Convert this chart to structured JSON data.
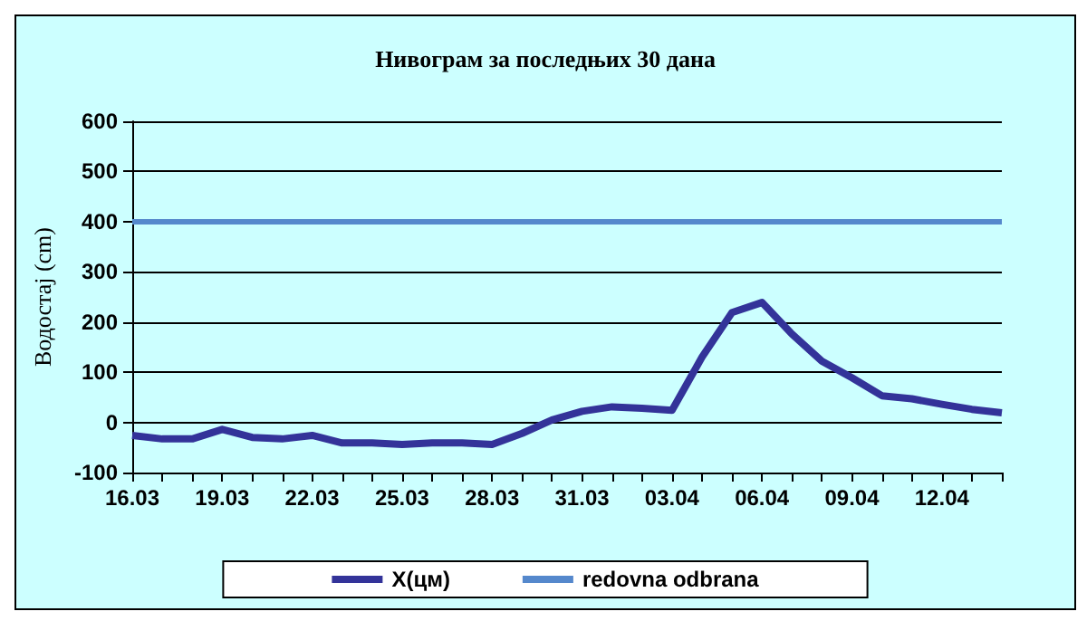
{
  "chart_data": {
    "type": "line",
    "title": "Нивограм за последњих 30 дана",
    "ylabel": "Водостај (cm)",
    "categories": [
      "16.03",
      null,
      null,
      "19.03",
      null,
      null,
      "22.03",
      null,
      null,
      "25.03",
      null,
      null,
      "28.03",
      null,
      null,
      "31.03",
      null,
      null,
      "03.04",
      null,
      null,
      "06.04",
      null,
      null,
      "09.04",
      null,
      null,
      "12.04",
      null,
      null
    ],
    "series": [
      {
        "name": "X(цм)",
        "color": "#333399",
        "values": [
          -26,
          -33,
          -33,
          -14,
          -30,
          -33,
          -26,
          -41,
          -41,
          -44,
          -41,
          -41,
          -44,
          -22,
          5,
          22,
          31,
          28,
          24,
          130,
          219,
          239,
          176,
          122,
          89,
          53,
          47,
          36,
          26,
          19
        ]
      }
    ],
    "ylim": [
      -100,
      600
    ],
    "yticks": [
      -100,
      0,
      100,
      200,
      300,
      400,
      500,
      600
    ],
    "ref_lines": [
      {
        "axis": "y",
        "value": 400,
        "label": "redovna odbrana",
        "color": "#5588cc"
      }
    ],
    "grid": "y",
    "legend": "bottom",
    "marker": "none",
    "line_style": "solid"
  }
}
